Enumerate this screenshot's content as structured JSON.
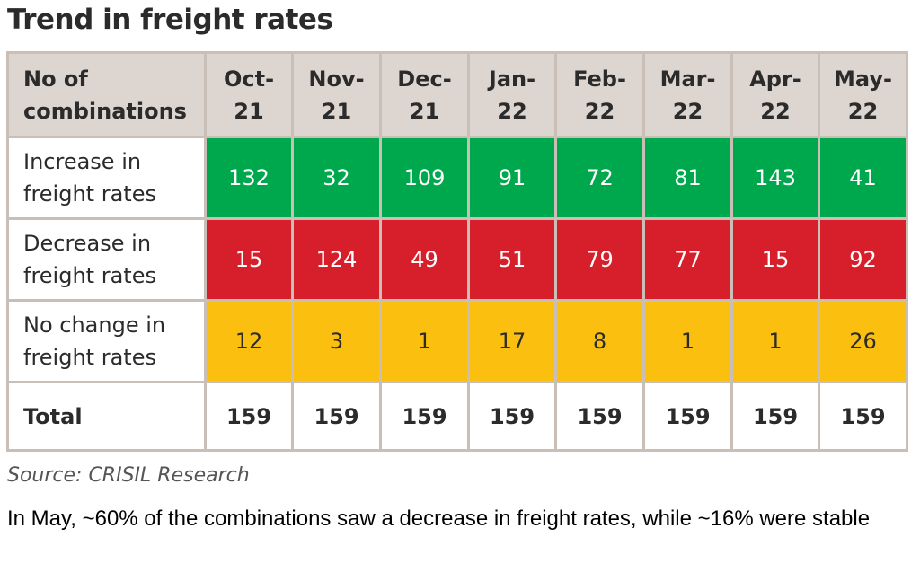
{
  "title": "Trend in freight rates",
  "chart_data": {
    "type": "table",
    "title": "Trend in freight rates",
    "header_label": [
      "No of",
      "combinations"
    ],
    "columns": [
      [
        "Oct-",
        "21"
      ],
      [
        "Nov-",
        "21"
      ],
      [
        "Dec-",
        "21"
      ],
      [
        "Jan-",
        "22"
      ],
      [
        "Feb-",
        "22"
      ],
      [
        "Mar-",
        "22"
      ],
      [
        "Apr-",
        "22"
      ],
      [
        "May-",
        "22"
      ]
    ],
    "rows": [
      {
        "label": [
          "Increase in",
          "freight rates"
        ],
        "kind": "inc",
        "color": "#00a84d",
        "values": [
          132,
          32,
          109,
          91,
          72,
          81,
          143,
          41
        ]
      },
      {
        "label": [
          "Decrease in",
          "freight rates"
        ],
        "kind": "dec",
        "color": "#d71f2b",
        "values": [
          15,
          124,
          49,
          51,
          79,
          77,
          15,
          92
        ]
      },
      {
        "label": [
          "No change in",
          "freight rates"
        ],
        "kind": "noc",
        "color": "#fbbf10",
        "values": [
          12,
          3,
          1,
          17,
          8,
          1,
          1,
          26
        ]
      }
    ],
    "total": {
      "label": "Total",
      "values": [
        159,
        159,
        159,
        159,
        159,
        159,
        159,
        159
      ]
    }
  },
  "source": "Source:  CRISIL Research",
  "note": "In May, ~60% of the combinations saw a decrease in freight rates, while ~16% were stable"
}
